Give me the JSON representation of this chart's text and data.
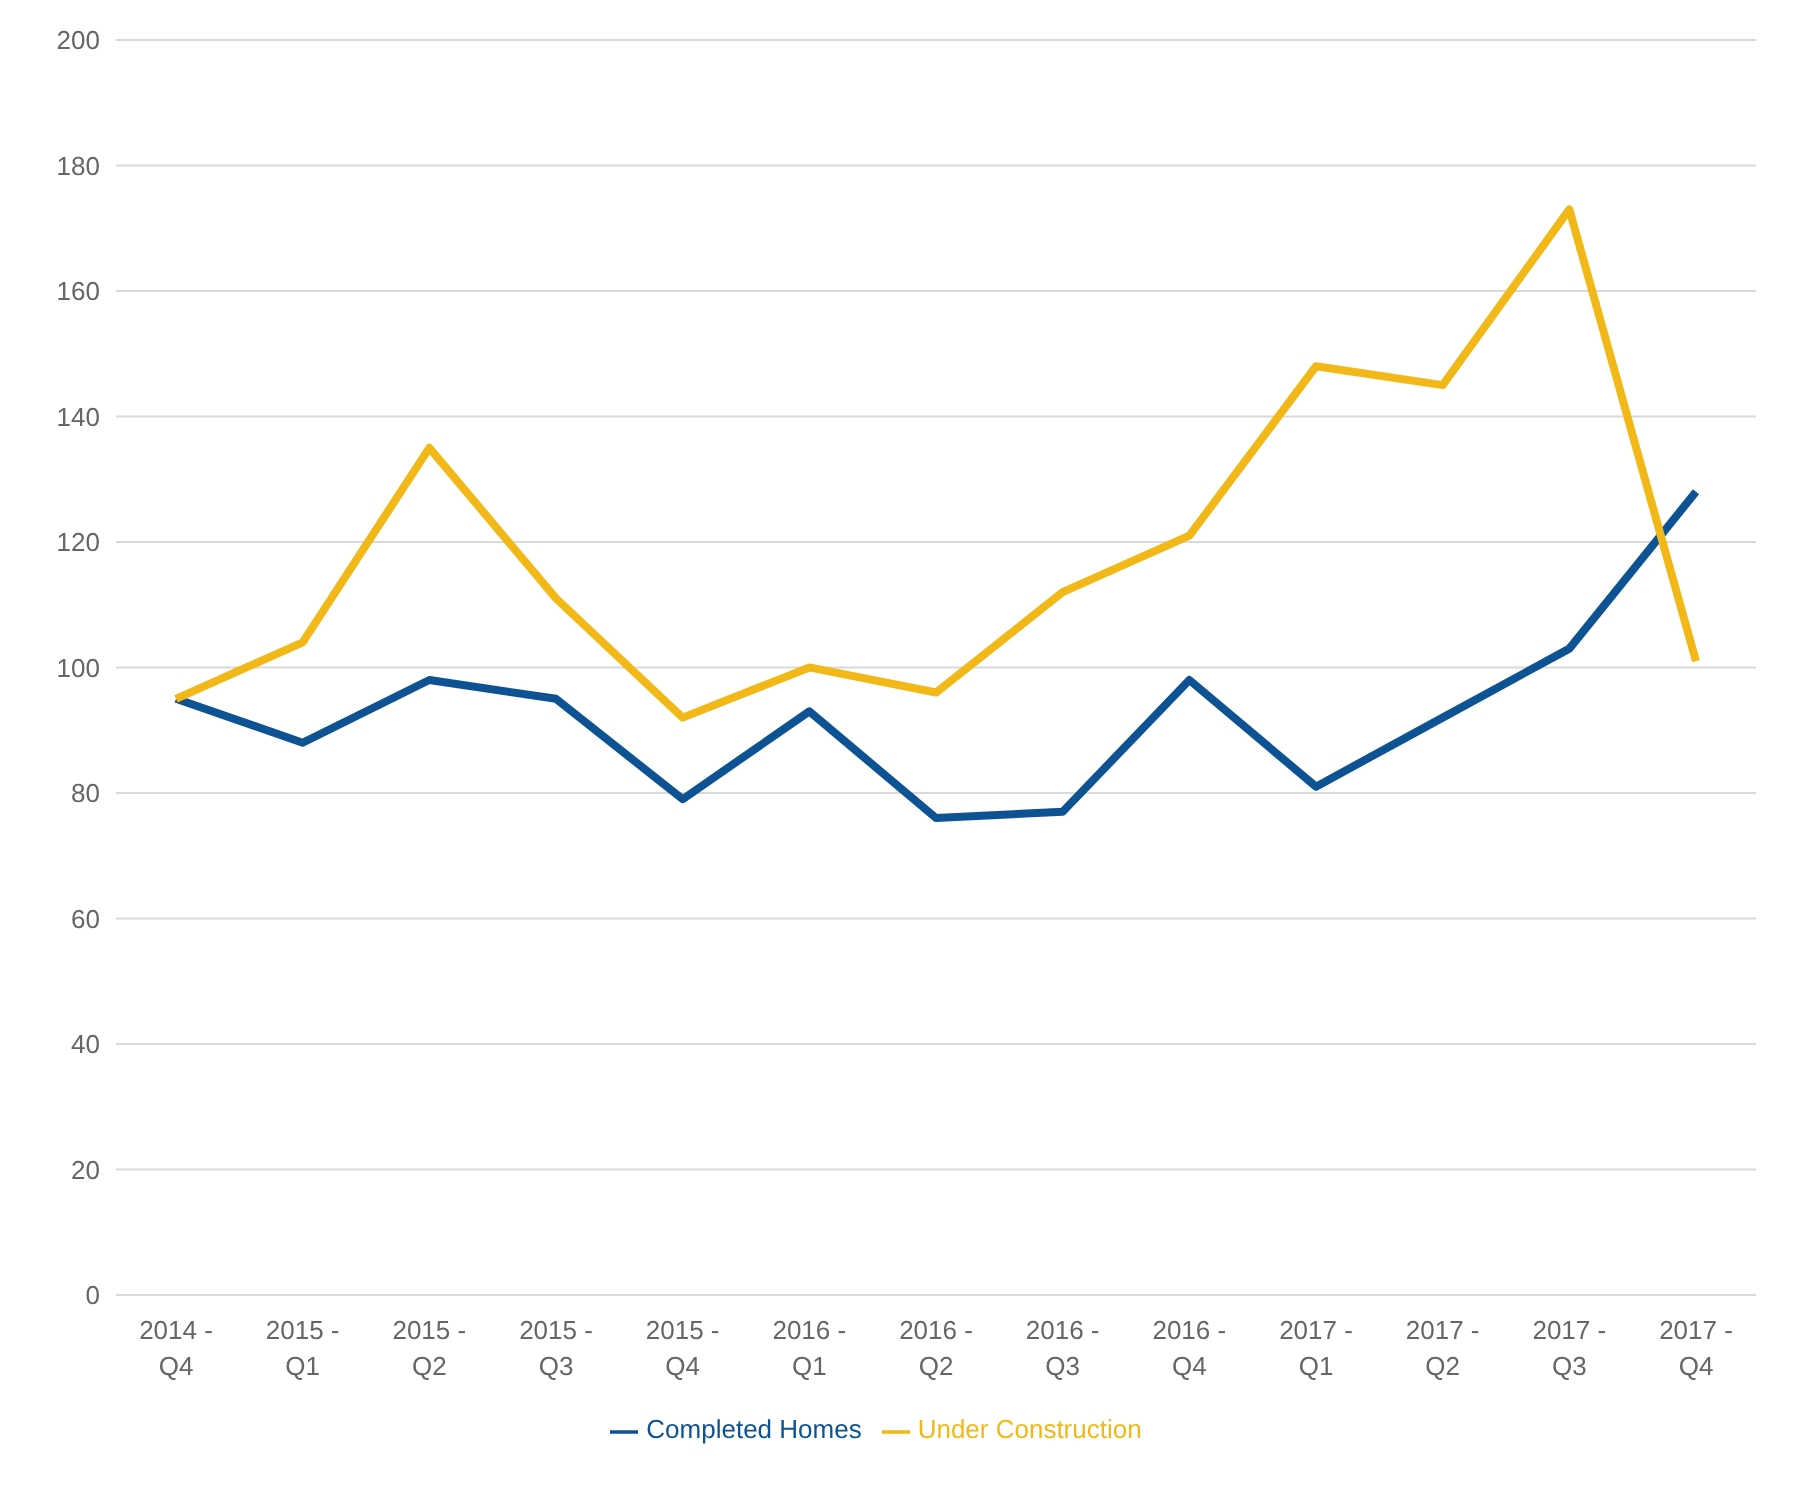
{
  "chart_data": {
    "type": "line",
    "categories": [
      "2014 - Q4",
      "2015 - Q1",
      "2015 - Q2",
      "2015 - Q3",
      "2015 - Q4",
      "2016 - Q1",
      "2016 - Q2",
      "2016 - Q3",
      "2016 - Q4",
      "2017 - Q1",
      "2017 - Q2",
      "2017 - Q3",
      "2017 - Q4"
    ],
    "series": [
      {
        "name": "Completed Homes",
        "color": "#0d5293",
        "values": [
          95,
          88,
          98,
          95,
          79,
          93,
          76,
          77,
          98,
          81,
          92,
          103,
          128
        ]
      },
      {
        "name": "Under Construction",
        "color": "#f2b817",
        "values": [
          95,
          104,
          135,
          111,
          92,
          100,
          96,
          112,
          121,
          148,
          145,
          173,
          101
        ]
      }
    ],
    "ylim": [
      0,
      200
    ],
    "yticks": [
      0,
      20,
      40,
      60,
      80,
      100,
      120,
      140,
      160,
      180,
      200
    ],
    "grid": "y",
    "legend": "bottom",
    "marker": "none",
    "line_style": "solid"
  }
}
